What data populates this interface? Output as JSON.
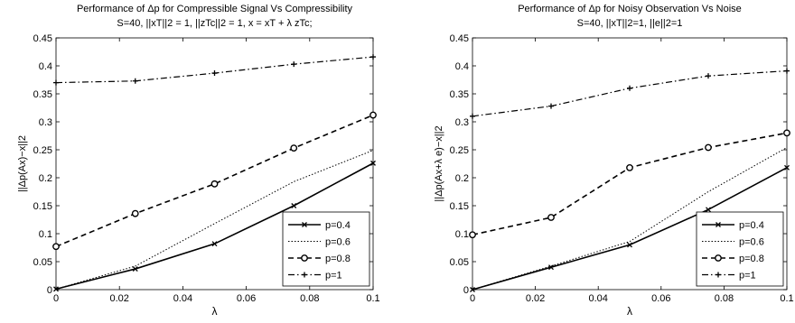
{
  "chart_data": [
    {
      "type": "line",
      "title": "Performance of Δp for Compressible Signal Vs Compressibility",
      "subtitle": "S=40, ||xT||2 = 1, ||zTc||2 = 1, x = xT + λ zTc;",
      "xlabel": "λ",
      "ylabel": "||Δp(Ax)−x||2",
      "xlim": [
        0,
        0.1
      ],
      "ylim": [
        0,
        0.45
      ],
      "xticks": [
        0,
        0.02,
        0.04,
        0.06,
        0.08,
        0.1
      ],
      "xtick_labels": [
        "0",
        "0.02",
        "0.04",
        "0.06",
        "0.08",
        "0.1"
      ],
      "yticks": [
        0,
        0.05,
        0.1,
        0.15,
        0.2,
        0.25,
        0.3,
        0.35,
        0.4,
        0.45
      ],
      "ytick_labels": [
        "0",
        "0.05",
        "0.1",
        "0.15",
        "0.2",
        "0.25",
        "0.3",
        "0.35",
        "0.4",
        "0.45"
      ],
      "grid": false,
      "legend_position": "bottom-right",
      "x": [
        0,
        0.025,
        0.05,
        0.075,
        0.1
      ],
      "series": [
        {
          "name": "p=0.4",
          "style": "solid-x",
          "values": [
            0.001,
            0.037,
            0.082,
            0.15,
            0.226
          ]
        },
        {
          "name": "p=0.6",
          "style": "dotted",
          "values": [
            0.001,
            0.042,
            0.118,
            0.193,
            0.249
          ]
        },
        {
          "name": "p=0.8",
          "style": "dashed-o",
          "values": [
            0.077,
            0.136,
            0.189,
            0.253,
            0.312
          ]
        },
        {
          "name": "p=1",
          "style": "dashdot-plus",
          "values": [
            0.37,
            0.373,
            0.387,
            0.403,
            0.416
          ]
        }
      ]
    },
    {
      "type": "line",
      "title": "Performance of Δp for Noisy Observation Vs Noise",
      "subtitle": "S=40, ||xT||2=1, ||e||2=1",
      "xlabel": "λ",
      "ylabel": "||Δp(Ax+λ e)−x||2",
      "xlim": [
        0,
        0.1
      ],
      "ylim": [
        0,
        0.45
      ],
      "xticks": [
        0,
        0.02,
        0.04,
        0.06,
        0.08,
        0.1
      ],
      "xtick_labels": [
        "0",
        "0.02",
        "0.04",
        "0.06",
        "0.08",
        "0.1"
      ],
      "yticks": [
        0,
        0.05,
        0.1,
        0.15,
        0.2,
        0.25,
        0.3,
        0.35,
        0.4,
        0.45
      ],
      "ytick_labels": [
        "0",
        "0.05",
        "0.1",
        "0.15",
        "0.2",
        "0.25",
        "0.3",
        "0.35",
        "0.4",
        "0.45"
      ],
      "grid": false,
      "legend_position": "bottom-right",
      "x": [
        0,
        0.025,
        0.05,
        0.075,
        0.1
      ],
      "series": [
        {
          "name": "p=0.4",
          "style": "solid-x",
          "values": [
            0.0,
            0.04,
            0.08,
            0.143,
            0.218
          ]
        },
        {
          "name": "p=0.6",
          "style": "dotted",
          "values": [
            0.0,
            0.042,
            0.086,
            0.175,
            0.254
          ]
        },
        {
          "name": "p=0.8",
          "style": "dashed-o",
          "values": [
            0.098,
            0.129,
            0.218,
            0.254,
            0.28
          ]
        },
        {
          "name": "p=1",
          "style": "dashdot-plus",
          "values": [
            0.31,
            0.328,
            0.36,
            0.382,
            0.391
          ]
        }
      ]
    }
  ]
}
